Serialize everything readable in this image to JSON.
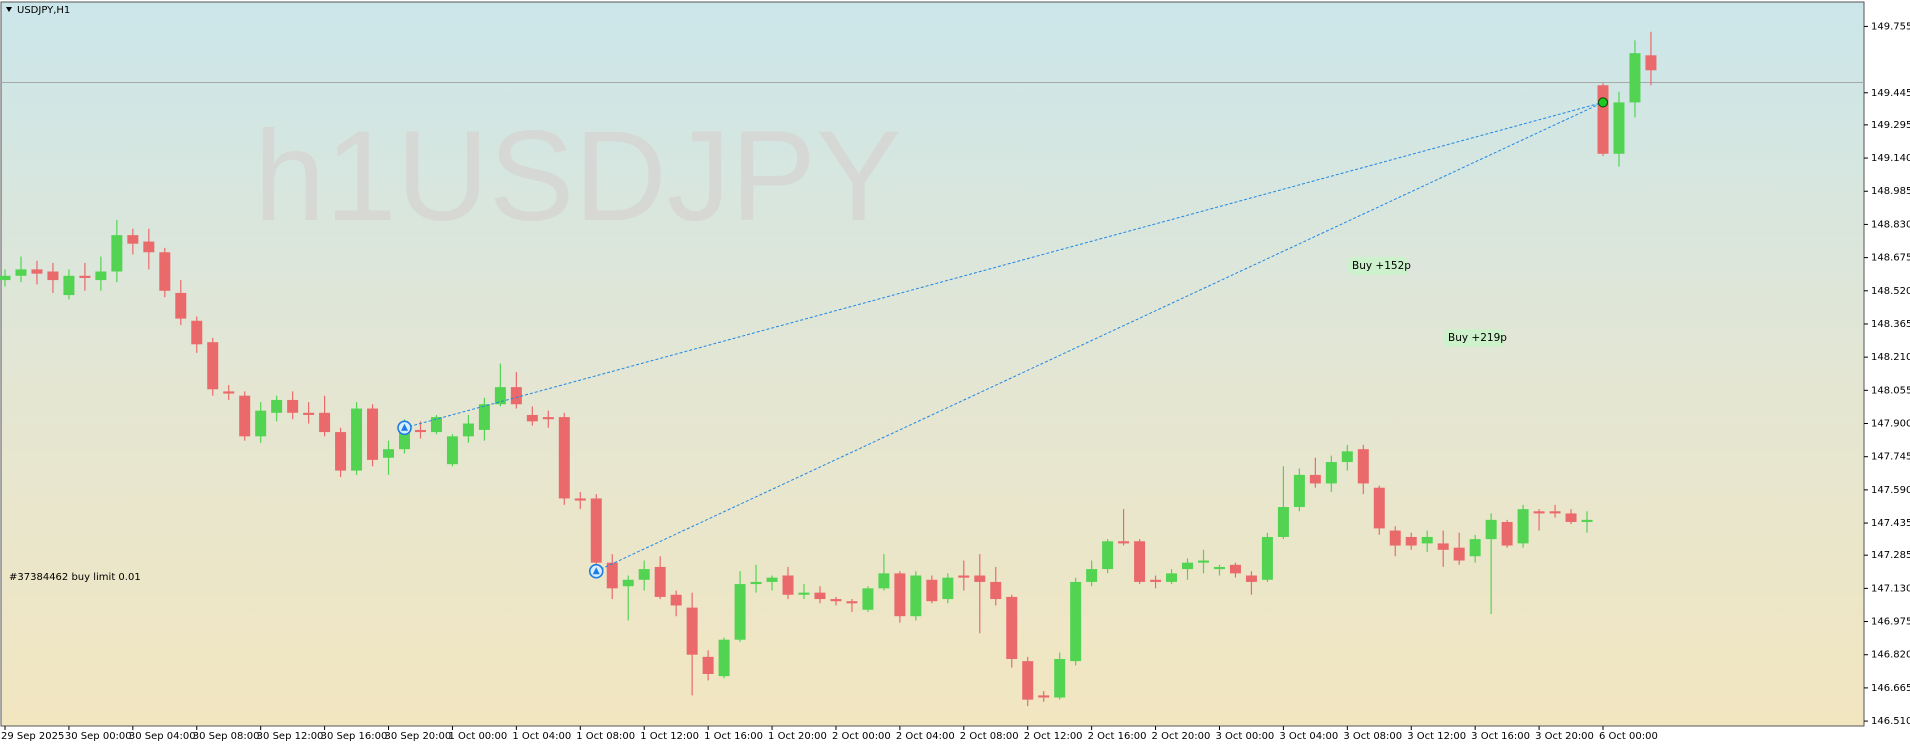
{
  "chart_data": {
    "type": "candlestick",
    "title": "USDJPY,H1",
    "watermark": "h1USDJPY",
    "categories": [
      "29 Sep 2025",
      null,
      null,
      null,
      "30 Sep 00:00",
      null,
      null,
      null,
      "30 Sep 04:00",
      null,
      null,
      null,
      "30 Sep 08:00",
      null,
      null,
      null,
      "30 Sep 12:00",
      null,
      null,
      null,
      "30 Sep 16:00",
      null,
      null,
      null,
      "30 Sep 20:00",
      null,
      null,
      null,
      "1 Oct 00:00",
      null,
      null,
      null,
      "1 Oct 04:00",
      null,
      null,
      null,
      "1 Oct 08:00",
      null,
      null,
      null,
      "1 Oct 12:00",
      null,
      null,
      null,
      "1 Oct 16:00",
      null,
      null,
      null,
      "1 Oct 20:00",
      null,
      null,
      null,
      "2 Oct 00:00",
      null,
      null,
      null,
      "2 Oct 04:00",
      null,
      null,
      null,
      "2 Oct 08:00",
      null,
      null,
      null,
      "2 Oct 12:00",
      null,
      null,
      null,
      "2 Oct 16:00",
      null,
      null,
      null,
      "2 Oct 20:00",
      null,
      null,
      null,
      "3 Oct 00:00",
      null,
      null,
      null,
      "3 Oct 04:00",
      null,
      null,
      null,
      "3 Oct 08:00",
      null,
      null,
      null,
      "3 Oct 12:00",
      null,
      null,
      null,
      "3 Oct 16:00",
      null,
      null,
      null,
      "3 Oct 20:00",
      null,
      null,
      null,
      "6 Oct 00:00",
      null,
      null,
      null
    ],
    "open": [
      148.57,
      148.59,
      148.62,
      148.61,
      148.5,
      148.59,
      148.57,
      148.61,
      148.78,
      148.75,
      148.7,
      148.51,
      148.38,
      148.28,
      148.05,
      148.03,
      147.84,
      147.95,
      148.01,
      147.95,
      147.95,
      147.86,
      147.68,
      147.97,
      147.74,
      147.78,
      147.87,
      147.86,
      147.71,
      147.84,
      147.87,
      147.99,
      148.07,
      147.94,
      147.93,
      147.93,
      147.55,
      147.55,
      147.25,
      147.14,
      147.17,
      147.23,
      147.1,
      147.04,
      146.81,
      146.72,
      146.89,
      147.15,
      147.16,
      147.19,
      147.1,
      147.11,
      147.08,
      147.07,
      147.03,
      147.13,
      147.2,
      147.0,
      147.17,
      147.08,
      147.19,
      147.19,
      147.16,
      147.09,
      146.79,
      146.63,
      146.62,
      146.79,
      147.16,
      147.22,
      147.35,
      147.35,
      147.17,
      147.16,
      147.22,
      147.25,
      147.22,
      147.24,
      147.19,
      147.17,
      147.37,
      147.51,
      147.66,
      147.62,
      147.72,
      147.78,
      147.6,
      147.4,
      147.37,
      147.34,
      147.34,
      147.32,
      147.28,
      147.36,
      147.44,
      147.34,
      147.49,
      147.49,
      147.48,
      147.44,
      149.48,
      149.16,
      149.4,
      149.62
    ],
    "high": [
      148.62,
      148.68,
      148.66,
      148.65,
      148.62,
      148.65,
      148.68,
      148.85,
      148.81,
      148.81,
      148.72,
      148.57,
      148.4,
      148.3,
      148.08,
      148.05,
      148.0,
      148.03,
      148.05,
      148.0,
      148.03,
      147.88,
      148.0,
      147.99,
      147.82,
      147.92,
      147.91,
      147.94,
      147.85,
      147.94,
      148.02,
      148.18,
      148.14,
      147.98,
      147.96,
      147.95,
      147.58,
      147.57,
      147.29,
      147.19,
      147.26,
      147.28,
      147.12,
      147.11,
      146.84,
      146.9,
      147.21,
      147.24,
      147.19,
      147.23,
      147.15,
      147.14,
      147.09,
      147.08,
      147.14,
      147.29,
      147.21,
      147.21,
      147.19,
      147.2,
      147.26,
      147.29,
      147.23,
      147.1,
      146.81,
      146.65,
      146.83,
      147.18,
      147.26,
      147.36,
      147.5,
      147.36,
      147.19,
      147.22,
      147.27,
      147.31,
      147.24,
      147.25,
      147.21,
      147.39,
      147.7,
      147.69,
      147.74,
      147.75,
      147.8,
      147.8,
      147.61,
      147.42,
      147.39,
      147.4,
      147.4,
      147.39,
      147.38,
      147.48,
      147.45,
      147.52,
      147.5,
      147.52,
      147.5,
      147.49,
      149.49,
      149.45,
      149.69,
      149.73
    ],
    "low": [
      148.54,
      148.56,
      148.55,
      148.51,
      148.48,
      148.52,
      148.52,
      148.56,
      148.69,
      148.62,
      148.49,
      148.36,
      148.23,
      148.03,
      148.01,
      147.82,
      147.81,
      147.91,
      147.92,
      147.9,
      147.84,
      147.65,
      147.66,
      147.7,
      147.66,
      147.76,
      147.83,
      147.85,
      147.7,
      147.81,
      147.82,
      147.98,
      147.97,
      147.89,
      147.88,
      147.52,
      147.5,
      147.2,
      147.08,
      146.98,
      147.12,
      147.08,
      147.0,
      146.63,
      146.7,
      146.71,
      146.88,
      147.11,
      147.12,
      147.08,
      147.08,
      147.06,
      147.05,
      147.02,
      147.02,
      147.12,
      146.97,
      146.98,
      147.06,
      147.06,
      147.12,
      146.92,
      147.05,
      146.76,
      146.58,
      146.6,
      146.61,
      146.77,
      147.14,
      147.2,
      147.33,
      147.15,
      147.13,
      147.15,
      147.17,
      147.2,
      147.19,
      147.18,
      147.1,
      147.16,
      147.36,
      147.49,
      147.6,
      147.58,
      147.68,
      147.57,
      147.38,
      147.28,
      147.31,
      147.3,
      147.23,
      147.24,
      147.25,
      147.01,
      147.32,
      147.32,
      147.4,
      147.46,
      147.43,
      147.39,
      149.15,
      149.1,
      149.33,
      149.48
    ],
    "close": [
      148.59,
      148.62,
      148.6,
      148.57,
      148.59,
      148.58,
      148.61,
      148.78,
      148.74,
      148.7,
      148.52,
      148.39,
      148.27,
      148.06,
      148.04,
      147.84,
      147.96,
      148.01,
      147.95,
      147.94,
      147.86,
      147.68,
      147.97,
      147.73,
      147.78,
      147.86,
      147.86,
      147.93,
      147.84,
      147.9,
      147.99,
      148.07,
      147.99,
      147.91,
      147.92,
      147.55,
      147.54,
      147.25,
      147.13,
      147.17,
      147.22,
      147.09,
      147.05,
      146.82,
      146.73,
      146.89,
      147.15,
      147.16,
      147.18,
      147.1,
      147.11,
      147.08,
      147.07,
      147.06,
      147.13,
      147.2,
      147.0,
      147.19,
      147.07,
      147.18,
      147.18,
      147.16,
      147.08,
      146.8,
      146.61,
      146.62,
      146.8,
      147.16,
      147.22,
      147.35,
      147.34,
      147.16,
      147.16,
      147.2,
      147.25,
      147.26,
      147.23,
      147.2,
      147.16,
      147.37,
      147.51,
      147.66,
      147.62,
      147.72,
      147.77,
      147.62,
      147.41,
      147.33,
      147.33,
      147.37,
      147.31,
      147.26,
      147.36,
      147.45,
      147.33,
      147.5,
      147.48,
      147.48,
      147.44,
      147.45,
      149.16,
      149.4,
      149.63,
      149.55
    ],
    "up_color": "#52d452",
    "down_color": "#ea6a6c",
    "ylim": [
      146.487,
      149.869
    ],
    "yticks": [
      149.755,
      149.445,
      149.295,
      {
        "value": 149.14,
        "label": "149.140"
      },
      148.985,
      {
        "value": 148.83,
        "label": "148.830"
      },
      148.675,
      {
        "value": 148.52,
        "label": "148.520"
      },
      148.365,
      {
        "value": 148.21,
        "label": "148.210"
      },
      148.055,
      {
        "value": 147.9,
        "label": "147.900"
      },
      147.745,
      {
        "value": 147.59,
        "label": "147.590"
      },
      147.435,
      147.285,
      {
        "value": 147.13,
        "label": "147.130"
      },
      146.975,
      {
        "value": 146.82,
        "label": "146.820"
      },
      146.665,
      {
        "value": 146.51,
        "label": "146.510"
      }
    ],
    "current_price": 149.493,
    "grid": false,
    "trades": [
      {
        "entry_index": 25,
        "entry_price": 147.88,
        "exit_index": 100,
        "exit_price": 149.4,
        "label": "Buy +152p"
      },
      {
        "entry_index": 37,
        "entry_price": 147.21,
        "exit_index": 100,
        "exit_price": 149.4,
        "label": "Buy +219p"
      }
    ],
    "order_label": "#37384462 buy limit 0.01"
  }
}
